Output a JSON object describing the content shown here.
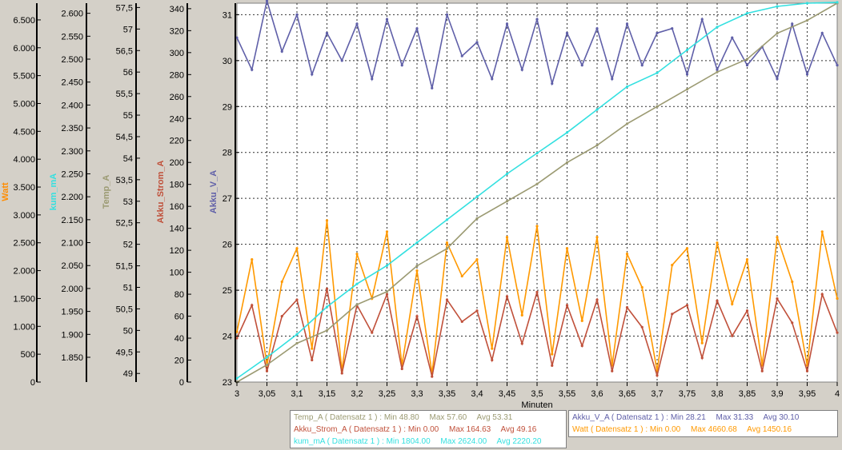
{
  "chart_data": {
    "type": "line",
    "xlabel": "Minuten",
    "x_ticks": [
      "3",
      "3,05",
      "3,1",
      "3,15",
      "3,2",
      "3,25",
      "3,3",
      "3,35",
      "3,4",
      "3,45",
      "3,5",
      "3,55",
      "3,6",
      "3,65",
      "3,7",
      "3,75",
      "3,8",
      "3,85",
      "3,9",
      "3,95",
      "4"
    ],
    "xlim": [
      3,
      4
    ],
    "axes": [
      {
        "label": "Watt",
        "color": "#ff8c00",
        "ylim": [
          0,
          6800
        ],
        "ticks": [
          {
            "v": 0,
            "t": "0"
          },
          {
            "v": 500,
            "t": "500"
          },
          {
            "v": 1000,
            "t": "1.000"
          },
          {
            "v": 1500,
            "t": "1.500"
          },
          {
            "v": 2000,
            "t": "2.000"
          },
          {
            "v": 2500,
            "t": "2.500"
          },
          {
            "v": 3000,
            "t": "3.000"
          },
          {
            "v": 3500,
            "t": "3.500"
          },
          {
            "v": 4000,
            "t": "4.000"
          },
          {
            "v": 4500,
            "t": "4.500"
          },
          {
            "v": 5000,
            "t": "5.000"
          },
          {
            "v": 5500,
            "t": "5.500"
          },
          {
            "v": 6000,
            "t": "6.000"
          },
          {
            "v": 6500,
            "t": "6.500"
          }
        ]
      },
      {
        "label": "kum_mA",
        "color": "#33e0e0",
        "ylim": [
          1796,
          2622
        ],
        "ticks": [
          {
            "v": 1850,
            "t": "1.850"
          },
          {
            "v": 1900,
            "t": "1.900"
          },
          {
            "v": 1950,
            "t": "1.950"
          },
          {
            "v": 2000,
            "t": "2.000"
          },
          {
            "v": 2050,
            "t": "2.050"
          },
          {
            "v": 2100,
            "t": "2.100"
          },
          {
            "v": 2150,
            "t": "2.150"
          },
          {
            "v": 2200,
            "t": "2.200"
          },
          {
            "v": 2250,
            "t": "2.250"
          },
          {
            "v": 2300,
            "t": "2.300"
          },
          {
            "v": 2350,
            "t": "2.350"
          },
          {
            "v": 2400,
            "t": "2.400"
          },
          {
            "v": 2450,
            "t": "2.450"
          },
          {
            "v": 2500,
            "t": "2.500"
          },
          {
            "v": 2550,
            "t": "2.550"
          },
          {
            "v": 2600,
            "t": "2.600"
          }
        ]
      },
      {
        "label": "Temp_A",
        "color": "#9b9a72",
        "ylim": [
          48.8,
          57.6
        ],
        "ticks": [
          {
            "v": 49,
            "t": "49"
          },
          {
            "v": 49.5,
            "t": "49,5"
          },
          {
            "v": 50,
            "t": "50"
          },
          {
            "v": 50.5,
            "t": "50,5"
          },
          {
            "v": 51,
            "t": "51"
          },
          {
            "v": 51.5,
            "t": "51,5"
          },
          {
            "v": 52,
            "t": "52"
          },
          {
            "v": 52.5,
            "t": "52,5"
          },
          {
            "v": 53,
            "t": "53"
          },
          {
            "v": 53.5,
            "t": "53,5"
          },
          {
            "v": 54,
            "t": "54"
          },
          {
            "v": 54.5,
            "t": "54,5"
          },
          {
            "v": 55,
            "t": "55"
          },
          {
            "v": 55.5,
            "t": "55,5"
          },
          {
            "v": 56,
            "t": "56"
          },
          {
            "v": 56.5,
            "t": "56,5"
          },
          {
            "v": 57,
            "t": "57"
          },
          {
            "v": 57.5,
            "t": "57,5"
          }
        ]
      },
      {
        "label": "Akku_Strom_A",
        "color": "#c0503a",
        "ylim": [
          0,
          345
        ],
        "ticks": [
          {
            "v": 0,
            "t": "0"
          },
          {
            "v": 20,
            "t": "20"
          },
          {
            "v": 40,
            "t": "40"
          },
          {
            "v": 60,
            "t": "60"
          },
          {
            "v": 80,
            "t": "80"
          },
          {
            "v": 100,
            "t": "100"
          },
          {
            "v": 120,
            "t": "120"
          },
          {
            "v": 140,
            "t": "140"
          },
          {
            "v": 160,
            "t": "160"
          },
          {
            "v": 180,
            "t": "180"
          },
          {
            "v": 200,
            "t": "200"
          },
          {
            "v": 220,
            "t": "220"
          },
          {
            "v": 240,
            "t": "240"
          },
          {
            "v": 260,
            "t": "260"
          },
          {
            "v": 280,
            "t": "280"
          },
          {
            "v": 300,
            "t": "300"
          },
          {
            "v": 320,
            "t": "320"
          },
          {
            "v": 340,
            "t": "340"
          }
        ]
      },
      {
        "label": "Akku_V_A",
        "color": "#5f5fa8",
        "ylim": [
          23,
          31.25
        ],
        "ticks": [
          {
            "v": 23,
            "t": "23"
          },
          {
            "v": 24,
            "t": "24"
          },
          {
            "v": 25,
            "t": "25"
          },
          {
            "v": 26,
            "t": "26"
          },
          {
            "v": 27,
            "t": "27"
          },
          {
            "v": 28,
            "t": "28"
          },
          {
            "v": 29,
            "t": "29"
          },
          {
            "v": 30,
            "t": "30"
          },
          {
            "v": 31,
            "t": "31"
          }
        ]
      }
    ],
    "series": [
      {
        "name": "Akku_V_A",
        "color": "#5f5fa8",
        "axis": 4,
        "x": [
          3.0,
          3.025,
          3.05,
          3.075,
          3.1,
          3.125,
          3.15,
          3.175,
          3.2,
          3.225,
          3.25,
          3.275,
          3.3,
          3.325,
          3.35,
          3.375,
          3.4,
          3.425,
          3.45,
          3.475,
          3.5,
          3.525,
          3.55,
          3.575,
          3.6,
          3.625,
          3.65,
          3.675,
          3.7,
          3.725,
          3.75,
          3.775,
          3.8,
          3.825,
          3.85,
          3.875,
          3.9,
          3.925,
          3.95,
          3.975,
          4.0
        ],
        "values": [
          30.5,
          29.8,
          31.3,
          30.2,
          31.0,
          29.7,
          30.6,
          30.0,
          30.8,
          29.6,
          30.9,
          29.9,
          30.7,
          29.4,
          31.0,
          30.1,
          30.4,
          29.6,
          30.8,
          29.8,
          30.9,
          29.5,
          30.6,
          29.9,
          30.7,
          29.6,
          30.8,
          29.9,
          30.6,
          30.7,
          29.7,
          30.9,
          29.8,
          30.5,
          29.9,
          30.3,
          29.6,
          30.8,
          29.7,
          30.6,
          29.9
        ]
      },
      {
        "name": "Watt",
        "color": "#ff9900",
        "axis": 0,
        "x": [
          3.0,
          3.025,
          3.05,
          3.075,
          3.1,
          3.125,
          3.15,
          3.175,
          3.2,
          3.225,
          3.25,
          3.275,
          3.3,
          3.325,
          3.35,
          3.375,
          3.4,
          3.425,
          3.45,
          3.475,
          3.5,
          3.525,
          3.55,
          3.575,
          3.6,
          3.625,
          3.65,
          3.675,
          3.7,
          3.725,
          3.75,
          3.775,
          3.8,
          3.825,
          3.85,
          3.875,
          3.9,
          3.925,
          3.95,
          3.975,
          4.0
        ],
        "values": [
          900,
          2200,
          300,
          1800,
          2400,
          600,
          2900,
          200,
          2300,
          1500,
          2700,
          300,
          2000,
          150,
          2500,
          1900,
          2200,
          600,
          2600,
          1200,
          2800,
          500,
          2400,
          1100,
          2600,
          300,
          2300,
          1700,
          200,
          2100,
          2400,
          700,
          2500,
          1400,
          2200,
          300,
          2600,
          1800,
          300,
          2700,
          1500
        ]
      },
      {
        "name": "Akku_Strom_A",
        "color": "#c0503a",
        "axis": 3,
        "x": [
          3.0,
          3.025,
          3.05,
          3.075,
          3.1,
          3.125,
          3.15,
          3.175,
          3.2,
          3.225,
          3.25,
          3.275,
          3.3,
          3.325,
          3.35,
          3.375,
          3.4,
          3.425,
          3.45,
          3.475,
          3.5,
          3.525,
          3.55,
          3.575,
          3.6,
          3.625,
          3.65,
          3.675,
          3.7,
          3.725,
          3.75,
          3.775,
          3.8,
          3.825,
          3.85,
          3.875,
          3.9,
          3.925,
          3.95,
          3.975,
          4.0
        ],
        "values": [
          40,
          70,
          10,
          60,
          75,
          20,
          85,
          8,
          70,
          45,
          80,
          12,
          60,
          5,
          75,
          55,
          65,
          20,
          78,
          35,
          82,
          15,
          70,
          33,
          75,
          10,
          68,
          50,
          6,
          62,
          70,
          22,
          74,
          42,
          65,
          10,
          76,
          54,
          10,
          80,
          45
        ]
      },
      {
        "name": "Temp_A",
        "color": "#9b9a72",
        "axis": 2,
        "x": [
          3.0,
          3.05,
          3.1,
          3.15,
          3.2,
          3.25,
          3.3,
          3.35,
          3.4,
          3.45,
          3.5,
          3.55,
          3.6,
          3.65,
          3.7,
          3.75,
          3.8,
          3.85,
          3.9,
          3.95,
          4.0
        ],
        "values": [
          48.8,
          49.2,
          49.7,
          50.0,
          50.6,
          50.9,
          51.5,
          51.9,
          52.6,
          53.0,
          53.4,
          53.9,
          54.3,
          54.8,
          55.2,
          55.6,
          56.0,
          56.3,
          56.9,
          57.2,
          57.6
        ]
      },
      {
        "name": "kum_mA",
        "color": "#33e0e0",
        "axis": 1,
        "x": [
          3.0,
          3.05,
          3.1,
          3.15,
          3.2,
          3.25,
          3.3,
          3.35,
          3.4,
          3.45,
          3.5,
          3.55,
          3.6,
          3.65,
          3.7,
          3.75,
          3.8,
          3.85,
          3.9,
          3.95,
          4.0
        ],
        "values": [
          1804,
          1850,
          1900,
          1960,
          2010,
          2050,
          2100,
          2150,
          2200,
          2250,
          2295,
          2340,
          2390,
          2440,
          2470,
          2520,
          2570,
          2600,
          2615,
          2622,
          2624
        ]
      }
    ]
  },
  "legend": {
    "rows_left": [
      {
        "name": "Temp_A ( Datensatz 1 ) : Min 48.80",
        "max": "Max 57.60",
        "avg": "Avg 53.31",
        "color": "#9b9a72"
      },
      {
        "name": "Akku_Strom_A ( Datensatz 1 ) : Min 0.00",
        "max": "Max 164.63",
        "avg": "Avg 49.16",
        "color": "#c0503a"
      },
      {
        "name": "kum_mA ( Datensatz 1 ) : Min 1804.00",
        "max": "Max 2624.00",
        "avg": "Avg 2220.20",
        "color": "#33e0e0"
      }
    ],
    "rows_right": [
      {
        "name": "Akku_V_A ( Datensatz 1 ) : Min 28.21",
        "max": "Max 31.33",
        "avg": "Avg 30.10",
        "color": "#5f5fa8"
      },
      {
        "name": "Watt ( Datensatz 1 ) : Min 0.00",
        "max": "Max 4660.68",
        "avg": "Avg 1450.16",
        "color": "#ff9900"
      }
    ]
  }
}
